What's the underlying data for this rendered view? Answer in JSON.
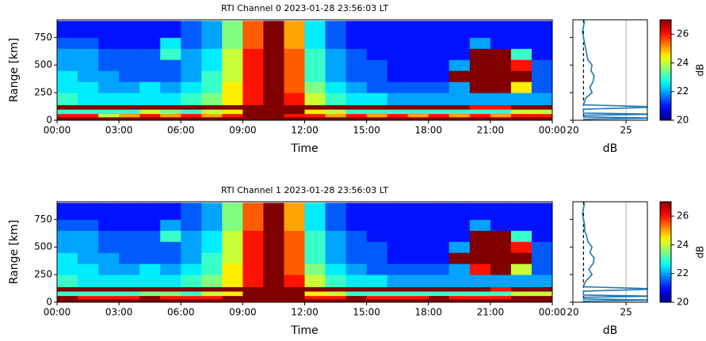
{
  "chart_data": [
    {
      "type": "heatmap",
      "title": "RTI Channel 0 2023-01-28 23:56:03 LT",
      "xlabel": "Time",
      "ylabel": "Range [km]",
      "x_bins": [
        0,
        1,
        2,
        3,
        4,
        5,
        6,
        7,
        8,
        9,
        10,
        11,
        12,
        13,
        14,
        15,
        16,
        17,
        18,
        19,
        20,
        21,
        22,
        23,
        24
      ],
      "y_bins": [
        0,
        30,
        60,
        100,
        140,
        250,
        350,
        450,
        550,
        650,
        750,
        900
      ],
      "xlim": [
        0,
        24
      ],
      "ylim": [
        0,
        910
      ],
      "xticks": [
        {
          "value": 0,
          "label": "00:00"
        },
        {
          "value": 3,
          "label": "03:00"
        },
        {
          "value": 6,
          "label": "06:00"
        },
        {
          "value": 9,
          "label": "09:00"
        },
        {
          "value": 12,
          "label": "12:00"
        },
        {
          "value": 15,
          "label": "15:00"
        },
        {
          "value": 18,
          "label": "18:00"
        },
        {
          "value": 21,
          "label": "21:00"
        },
        {
          "value": 24,
          "label": "00:00"
        }
      ],
      "yticks": [
        0,
        250,
        500,
        750
      ],
      "values": [
        [
          27,
          27,
          27,
          27,
          27,
          27,
          27,
          27,
          27,
          27,
          27,
          27,
          27,
          27,
          27,
          27,
          27,
          27,
          27,
          27,
          27,
          27,
          27,
          27
        ],
        [
          26,
          26,
          24,
          25,
          26,
          25,
          26,
          25,
          26,
          27,
          27,
          26,
          26,
          25,
          26,
          25,
          26,
          25,
          26,
          25,
          26,
          25,
          26,
          26
        ],
        [
          23,
          23,
          23,
          23,
          24,
          23.5,
          23,
          24,
          24.5,
          27,
          27,
          27,
          24.5,
          24,
          23,
          23,
          23,
          23,
          23,
          23,
          23,
          23,
          24,
          24
        ],
        [
          27,
          27,
          27,
          27,
          27,
          27,
          27,
          27,
          27,
          27,
          27,
          27,
          27,
          27,
          27,
          27,
          27,
          27,
          27,
          27,
          26,
          26,
          27,
          27
        ],
        [
          23,
          22.5,
          22.5,
          22.5,
          22.5,
          22.5,
          23,
          23.5,
          24.5,
          26,
          27,
          26,
          24,
          23,
          22.5,
          22.5,
          22,
          22,
          22,
          22,
          22,
          22,
          22,
          22
        ],
        [
          22.5,
          22.5,
          22,
          22,
          22.5,
          22,
          22.5,
          23,
          24.5,
          26,
          27,
          25.5,
          23.5,
          22.5,
          22,
          21.5,
          21.5,
          21.5,
          21.5,
          22,
          27,
          27,
          24.5,
          21.5
        ],
        [
          22.5,
          22,
          22,
          21.5,
          21.5,
          21.5,
          22,
          23,
          24,
          26,
          27,
          25.5,
          23,
          22,
          21.5,
          21.5,
          21,
          21,
          21,
          27,
          27,
          27,
          27,
          21.5
        ],
        [
          22,
          22,
          21.5,
          21.5,
          21.5,
          21.5,
          22,
          22.5,
          24,
          26,
          27,
          25.5,
          23,
          22,
          21.5,
          21.5,
          21,
          21,
          21,
          22,
          27,
          27,
          26,
          21.5
        ],
        [
          22,
          22,
          21.5,
          21.5,
          21.5,
          23,
          22,
          22.5,
          24,
          26,
          27,
          25.5,
          23,
          22,
          21.5,
          21,
          21,
          21,
          21,
          21,
          27,
          27,
          23,
          21
        ],
        [
          21.5,
          21.5,
          21,
          21,
          21,
          22.5,
          21.5,
          22,
          23.5,
          25.5,
          27,
          25,
          22.5,
          21.5,
          21,
          21,
          21,
          21,
          21,
          21,
          22,
          21,
          21,
          21
        ],
        [
          21,
          21,
          21,
          21,
          21,
          21,
          21.5,
          22,
          23.5,
          25.5,
          27,
          25,
          22.5,
          21.5,
          21,
          21,
          21,
          21,
          21,
          21,
          21,
          21,
          21,
          21
        ]
      ],
      "colorbar": {
        "label": "dB",
        "clim": [
          20,
          27
        ],
        "ticks": [
          20,
          22,
          24,
          26
        ]
      }
    },
    {
      "type": "line",
      "xlabel": "dB",
      "xlim": [
        20,
        27
      ],
      "xticks": [
        20,
        25
      ],
      "ylim": [
        0,
        910
      ],
      "yticks": [
        0,
        250,
        500,
        750
      ],
      "grid": true,
      "ref_line": 21,
      "y": [
        0,
        10,
        20,
        30,
        45,
        55,
        65,
        100,
        120,
        140,
        170,
        200,
        250,
        300,
        350,
        400,
        450,
        500,
        550,
        600,
        650,
        700,
        750,
        800,
        850,
        900
      ],
      "series": [
        {
          "color": "#1f77b4",
          "values": [
            21.2,
            21.1,
            28,
            21.0,
            21.1,
            28,
            21.0,
            21.0,
            28,
            21.0,
            21.1,
            21.2,
            21.8,
            21.6,
            21.9,
            22.0,
            21.7,
            21.8,
            21.4,
            21.3,
            21.2,
            21.1,
            21.0,
            20.9,
            21.0,
            21.1
          ]
        }
      ]
    },
    {
      "type": "heatmap",
      "title": "RTI Channel 1 2023-01-28 23:56:03 LT",
      "xlabel": "Time",
      "ylabel": "Range [km]",
      "x_bins": [
        0,
        1,
        2,
        3,
        4,
        5,
        6,
        7,
        8,
        9,
        10,
        11,
        12,
        13,
        14,
        15,
        16,
        17,
        18,
        19,
        20,
        21,
        22,
        23,
        24
      ],
      "y_bins": [
        0,
        30,
        60,
        100,
        140,
        250,
        350,
        450,
        550,
        650,
        750,
        900
      ],
      "xlim": [
        0,
        24
      ],
      "ylim": [
        0,
        910
      ],
      "xticks": [
        {
          "value": 0,
          "label": "00:00"
        },
        {
          "value": 3,
          "label": "03:00"
        },
        {
          "value": 6,
          "label": "06:00"
        },
        {
          "value": 9,
          "label": "09:00"
        },
        {
          "value": 12,
          "label": "12:00"
        },
        {
          "value": 15,
          "label": "15:00"
        },
        {
          "value": 18,
          "label": "18:00"
        },
        {
          "value": 21,
          "label": "21:00"
        },
        {
          "value": 24,
          "label": "00:00"
        }
      ],
      "yticks": [
        0,
        250,
        500,
        750
      ],
      "values": [
        [
          27,
          27,
          27,
          27,
          27,
          27,
          27,
          27,
          27,
          27,
          27,
          27,
          27,
          27,
          27,
          27,
          27,
          27,
          27,
          27,
          27,
          27,
          27,
          27
        ],
        [
          27,
          26,
          26,
          26,
          27,
          26,
          26,
          26,
          27,
          27,
          27,
          27,
          26,
          26,
          27,
          26,
          26,
          26,
          27,
          26,
          26,
          26,
          27,
          27
        ],
        [
          23,
          23,
          23,
          23,
          23.5,
          23.5,
          23,
          24,
          24.5,
          27,
          27,
          27,
          24.5,
          24,
          23,
          23,
          23,
          23,
          23,
          23,
          23,
          23,
          24,
          24
        ],
        [
          27,
          27,
          27,
          27,
          27,
          27,
          27,
          27,
          27,
          27,
          27,
          27,
          27,
          27,
          27,
          27,
          27,
          27,
          27,
          27,
          27,
          26,
          27,
          27
        ],
        [
          23,
          22.5,
          22.5,
          22.5,
          22.5,
          22.5,
          23,
          23.5,
          24.5,
          26,
          27,
          26,
          24,
          23,
          22.5,
          22.5,
          22,
          22,
          22,
          22,
          22,
          22,
          22,
          22
        ],
        [
          22.5,
          22.5,
          22,
          22,
          22.5,
          22,
          22.5,
          23,
          24.5,
          26,
          27,
          25.5,
          23.5,
          22.5,
          22,
          21.5,
          21.5,
          21.5,
          21.5,
          22,
          26,
          27,
          24,
          21.5
        ],
        [
          22.5,
          22,
          22,
          21.5,
          21.5,
          21.5,
          22,
          23,
          24,
          26,
          27,
          25.5,
          23,
          22,
          21.5,
          21.5,
          21,
          21,
          21,
          27,
          27,
          27,
          27,
          21.5
        ],
        [
          22,
          22,
          21.5,
          21.5,
          21.5,
          21.5,
          22,
          22.5,
          24,
          26,
          27,
          25.5,
          23,
          22,
          21.5,
          21.5,
          21,
          21,
          21,
          22,
          27,
          27,
          26,
          21.5
        ],
        [
          22,
          22,
          21.5,
          21.5,
          21.5,
          23,
          22,
          22.5,
          24,
          26,
          27,
          25.5,
          23,
          22,
          21.5,
          21,
          21,
          21,
          21,
          21,
          27,
          27,
          23,
          21
        ],
        [
          21.5,
          21.5,
          21,
          21,
          21,
          22,
          21.5,
          22,
          23.5,
          25.5,
          27,
          25,
          22.5,
          21.5,
          21,
          21,
          21,
          21,
          21,
          21,
          22,
          21,
          21,
          21
        ],
        [
          21,
          21,
          21,
          21,
          21,
          21,
          21.5,
          22,
          23.5,
          25.5,
          27,
          25,
          22.5,
          21.5,
          21,
          21,
          21,
          21,
          21,
          21,
          21,
          21,
          21,
          21
        ]
      ],
      "colorbar": {
        "label": "dB",
        "clim": [
          20,
          27
        ],
        "ticks": [
          20,
          22,
          24,
          26
        ]
      }
    },
    {
      "type": "line",
      "xlabel": "dB",
      "xlim": [
        20,
        27
      ],
      "xticks": [
        20,
        25
      ],
      "ylim": [
        0,
        910
      ],
      "yticks": [
        0,
        250,
        500,
        750
      ],
      "grid": true,
      "ref_line": 21,
      "y": [
        0,
        10,
        20,
        30,
        45,
        55,
        65,
        100,
        120,
        140,
        170,
        200,
        250,
        300,
        350,
        400,
        450,
        500,
        550,
        600,
        650,
        700,
        750,
        800,
        850,
        900
      ],
      "series": [
        {
          "color": "#1f77b4",
          "values": [
            21.1,
            21.0,
            28,
            21.0,
            21.1,
            28,
            21.0,
            21.0,
            28,
            21.0,
            21.1,
            21.3,
            21.8,
            21.5,
            21.9,
            22.0,
            21.6,
            21.8,
            21.4,
            21.3,
            21.1,
            21.1,
            21.0,
            20.9,
            21.0,
            21.1
          ]
        }
      ]
    }
  ]
}
